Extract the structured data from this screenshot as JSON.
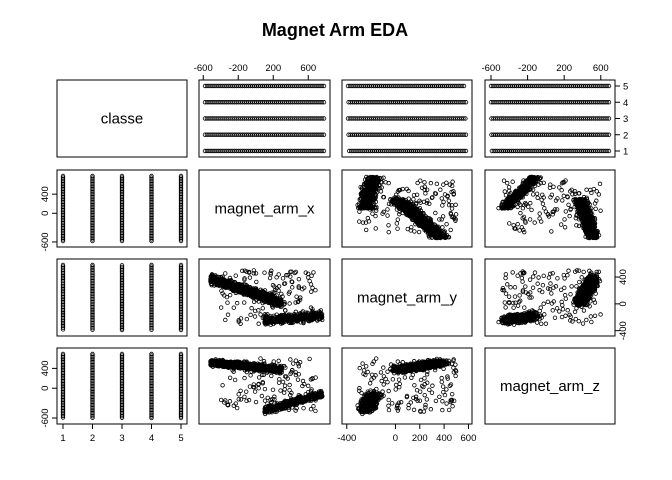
{
  "chart_data": {
    "type": "scatter",
    "subtype": "pairs-matrix",
    "title": "Magnet Arm EDA",
    "variables": [
      "classe",
      "magnet_arm_x",
      "magnet_arm_y",
      "magnet_arm_z"
    ],
    "ranges": {
      "classe": [
        1,
        5
      ],
      "magnet_arm_x": [
        -580,
        780
      ],
      "magnet_arm_y": [
        -390,
        580
      ],
      "magnet_arm_z": [
        -600,
        690
      ]
    },
    "ticks": {
      "classe": [
        1,
        2,
        3,
        4,
        5
      ],
      "magnet_arm_x": [
        -600,
        -200,
        200,
        600
      ],
      "magnet_arm_y": [
        -400,
        0,
        200,
        400,
        600
      ],
      "magnet_arm_z": [
        -600,
        -200,
        200,
        600
      ]
    },
    "tick_labels": {
      "classe": [
        "1",
        "2",
        "3",
        "4",
        "5"
      ],
      "magnet_arm_x": [
        "-600",
        "-200",
        "200",
        "600"
      ],
      "magnet_arm_y": [
        "-400",
        "0",
        "200",
        "400",
        "600"
      ],
      "magnet_arm_z": [
        "-600",
        "-200",
        "200",
        "600"
      ],
      "magnet_arm_x_left": [
        "-600",
        "0",
        "400"
      ],
      "magnet_arm_y_right": [
        "-400",
        "0",
        "400"
      ],
      "magnet_arm_z_left": [
        "-600",
        "0",
        "400"
      ]
    },
    "class_ranges": {
      "magnet_arm_x": [
        [
          -580,
          780
        ],
        [
          -580,
          780
        ],
        [
          -580,
          780
        ],
        [
          -580,
          780
        ],
        [
          -580,
          780
        ]
      ],
      "magnet_arm_y": [
        [
          -380,
          580
        ],
        [
          -385,
          580
        ],
        [
          -390,
          575
        ],
        [
          -385,
          580
        ],
        [
          -390,
          580
        ]
      ],
      "magnet_arm_z": [
        [
          -590,
          690
        ],
        [
          -595,
          690
        ],
        [
          -595,
          690
        ],
        [
          -600,
          690
        ],
        [
          -600,
          690
        ]
      ]
    },
    "grid": false,
    "legend": "none"
  }
}
